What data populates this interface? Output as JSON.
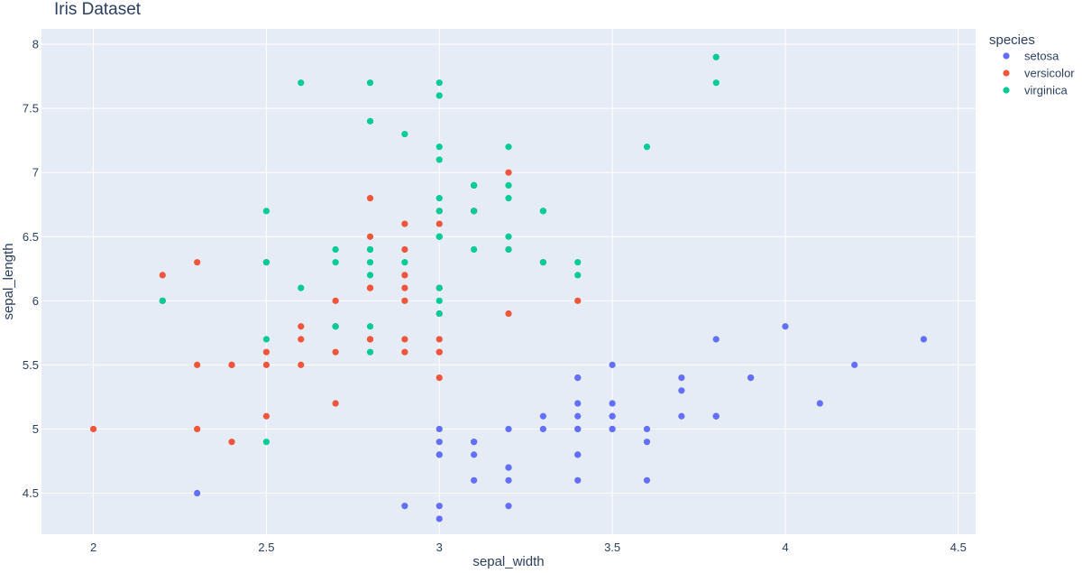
{
  "chart_data": {
    "type": "scatter",
    "title": "Iris Dataset",
    "xlabel": "sepal_width",
    "ylabel": "sepal_length",
    "xlim": [
      1.85,
      4.55
    ],
    "ylim": [
      4.18,
      8.12
    ],
    "xticks": [
      2,
      2.5,
      3,
      3.5,
      4,
      4.5
    ],
    "yticks": [
      4.5,
      5,
      5.5,
      6,
      6.5,
      7,
      7.5,
      8
    ],
    "xtick_labels": [
      "2",
      "2.5",
      "3",
      "3.5",
      "4",
      "4.5"
    ],
    "ytick_labels": [
      "4.5",
      "5",
      "5.5",
      "6",
      "6.5",
      "7",
      "7.5",
      "8"
    ],
    "grid": true,
    "legend": {
      "title": "species",
      "position": "top-right"
    },
    "series": [
      {
        "name": "setosa",
        "color": "#636efa",
        "points": [
          [
            3.5,
            5.1
          ],
          [
            3.0,
            4.9
          ],
          [
            3.2,
            4.7
          ],
          [
            3.1,
            4.6
          ],
          [
            3.6,
            5.0
          ],
          [
            3.9,
            5.4
          ],
          [
            3.4,
            4.6
          ],
          [
            3.4,
            5.0
          ],
          [
            2.9,
            4.4
          ],
          [
            3.1,
            4.9
          ],
          [
            3.7,
            5.4
          ],
          [
            3.4,
            4.8
          ],
          [
            3.0,
            4.8
          ],
          [
            3.0,
            4.3
          ],
          [
            4.0,
            5.8
          ],
          [
            4.4,
            5.7
          ],
          [
            3.9,
            5.4
          ],
          [
            3.5,
            5.1
          ],
          [
            3.8,
            5.7
          ],
          [
            3.8,
            5.1
          ],
          [
            3.4,
            5.4
          ],
          [
            3.7,
            5.1
          ],
          [
            3.6,
            4.6
          ],
          [
            3.3,
            5.1
          ],
          [
            3.4,
            4.8
          ],
          [
            3.0,
            5.0
          ],
          [
            3.4,
            5.0
          ],
          [
            3.5,
            5.2
          ],
          [
            3.4,
            5.2
          ],
          [
            3.2,
            4.7
          ],
          [
            3.1,
            4.8
          ],
          [
            3.4,
            5.4
          ],
          [
            4.1,
            5.2
          ],
          [
            4.2,
            5.5
          ],
          [
            3.1,
            4.9
          ],
          [
            3.2,
            5.0
          ],
          [
            3.5,
            5.5
          ],
          [
            3.6,
            4.9
          ],
          [
            3.0,
            4.4
          ],
          [
            3.4,
            5.1
          ],
          [
            3.5,
            5.0
          ],
          [
            2.3,
            4.5
          ],
          [
            3.2,
            4.4
          ],
          [
            3.5,
            5.0
          ],
          [
            3.8,
            5.1
          ],
          [
            3.0,
            4.8
          ],
          [
            3.8,
            5.1
          ],
          [
            3.2,
            4.6
          ],
          [
            3.7,
            5.3
          ],
          [
            3.3,
            5.0
          ]
        ]
      },
      {
        "name": "versicolor",
        "color": "#ef553b",
        "points": [
          [
            3.2,
            7.0
          ],
          [
            3.2,
            6.4
          ],
          [
            3.1,
            6.9
          ],
          [
            2.3,
            5.5
          ],
          [
            2.8,
            6.5
          ],
          [
            2.8,
            5.7
          ],
          [
            3.3,
            6.3
          ],
          [
            2.4,
            4.9
          ],
          [
            2.9,
            6.6
          ],
          [
            2.7,
            5.2
          ],
          [
            2.0,
            5.0
          ],
          [
            3.0,
            5.9
          ],
          [
            2.2,
            6.0
          ],
          [
            2.9,
            6.1
          ],
          [
            2.9,
            5.6
          ],
          [
            3.1,
            6.7
          ],
          [
            3.0,
            5.6
          ],
          [
            2.7,
            5.8
          ],
          [
            2.2,
            6.2
          ],
          [
            2.5,
            5.6
          ],
          [
            3.2,
            5.9
          ],
          [
            2.8,
            6.1
          ],
          [
            2.5,
            6.3
          ],
          [
            2.8,
            6.1
          ],
          [
            2.9,
            6.4
          ],
          [
            3.0,
            6.6
          ],
          [
            2.8,
            6.8
          ],
          [
            3.0,
            6.7
          ],
          [
            2.9,
            6.0
          ],
          [
            2.6,
            5.7
          ],
          [
            2.4,
            5.5
          ],
          [
            2.4,
            5.5
          ],
          [
            2.7,
            5.8
          ],
          [
            2.7,
            6.0
          ],
          [
            3.0,
            5.4
          ],
          [
            3.4,
            6.0
          ],
          [
            3.1,
            6.7
          ],
          [
            2.3,
            6.3
          ],
          [
            3.0,
            5.6
          ],
          [
            2.5,
            5.5
          ],
          [
            2.6,
            5.5
          ],
          [
            3.0,
            6.1
          ],
          [
            2.6,
            5.8
          ],
          [
            2.3,
            5.0
          ],
          [
            2.7,
            5.6
          ],
          [
            3.0,
            5.7
          ],
          [
            2.9,
            5.7
          ],
          [
            2.9,
            6.2
          ],
          [
            2.5,
            5.1
          ],
          [
            2.8,
            5.7
          ]
        ]
      },
      {
        "name": "virginica",
        "color": "#00cc96",
        "points": [
          [
            3.3,
            6.3
          ],
          [
            2.7,
            5.8
          ],
          [
            3.0,
            7.1
          ],
          [
            2.9,
            6.3
          ],
          [
            3.0,
            6.5
          ],
          [
            3.0,
            7.6
          ],
          [
            2.5,
            4.9
          ],
          [
            2.9,
            7.3
          ],
          [
            2.5,
            6.7
          ],
          [
            3.6,
            7.2
          ],
          [
            3.2,
            6.5
          ],
          [
            2.7,
            6.4
          ],
          [
            3.0,
            6.8
          ],
          [
            2.5,
            5.7
          ],
          [
            2.8,
            5.8
          ],
          [
            3.2,
            6.4
          ],
          [
            3.0,
            6.5
          ],
          [
            3.8,
            7.7
          ],
          [
            2.6,
            7.7
          ],
          [
            2.2,
            6.0
          ],
          [
            3.2,
            6.9
          ],
          [
            2.8,
            5.6
          ],
          [
            2.8,
            7.7
          ],
          [
            2.7,
            6.3
          ],
          [
            3.3,
            6.7
          ],
          [
            3.2,
            7.2
          ],
          [
            2.8,
            6.2
          ],
          [
            3.0,
            6.1
          ],
          [
            2.8,
            6.4
          ],
          [
            3.0,
            7.2
          ],
          [
            2.8,
            7.4
          ],
          [
            3.8,
            7.9
          ],
          [
            2.8,
            6.4
          ],
          [
            2.8,
            6.3
          ],
          [
            2.6,
            6.1
          ],
          [
            3.0,
            7.7
          ],
          [
            3.4,
            6.3
          ],
          [
            3.1,
            6.4
          ],
          [
            3.0,
            6.0
          ],
          [
            3.1,
            6.9
          ],
          [
            3.1,
            6.7
          ],
          [
            3.1,
            6.9
          ],
          [
            2.7,
            5.8
          ],
          [
            3.2,
            6.8
          ],
          [
            3.3,
            6.7
          ],
          [
            3.0,
            6.7
          ],
          [
            2.5,
            6.3
          ],
          [
            3.0,
            6.5
          ],
          [
            3.4,
            6.2
          ],
          [
            3.0,
            5.9
          ]
        ]
      }
    ]
  }
}
